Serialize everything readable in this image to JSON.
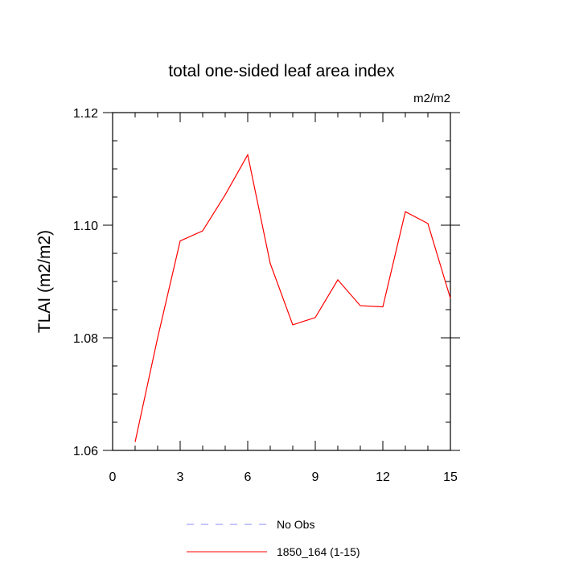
{
  "chart_data": {
    "type": "line",
    "title": "total one-sided leaf area index",
    "units": "m2/m2",
    "ylabel": "TLAI  (m2/m2)",
    "xlabel": "",
    "xlim": [
      0,
      15
    ],
    "ylim": [
      1.06,
      1.12
    ],
    "x_ticks": [
      0,
      3,
      6,
      9,
      12,
      15
    ],
    "x_tick_labels": [
      "0",
      "3",
      "6",
      "9",
      "12",
      "15"
    ],
    "y_ticks": [
      1.06,
      1.08,
      1.1,
      1.12
    ],
    "y_tick_labels": [
      "1.06",
      "1.08",
      "1.10",
      "1.12"
    ],
    "grid": false,
    "legend_position": "bottom",
    "series": [
      {
        "name": "No Obs",
        "style": "dashed",
        "color": "#8c8cff",
        "x": [],
        "y": []
      },
      {
        "name": "1850_164 (1-15)",
        "style": "solid",
        "color": "#ff0000",
        "x": [
          1,
          2,
          3,
          4,
          5,
          6,
          7,
          8,
          9,
          10,
          11,
          12,
          13,
          14,
          15
        ],
        "y": [
          1.0615,
          1.08,
          1.0972,
          1.099,
          1.1054,
          1.1125,
          1.0932,
          1.0823,
          1.0836,
          1.0903,
          1.0857,
          1.0855,
          1.1024,
          1.1003,
          1.087
        ]
      }
    ]
  }
}
